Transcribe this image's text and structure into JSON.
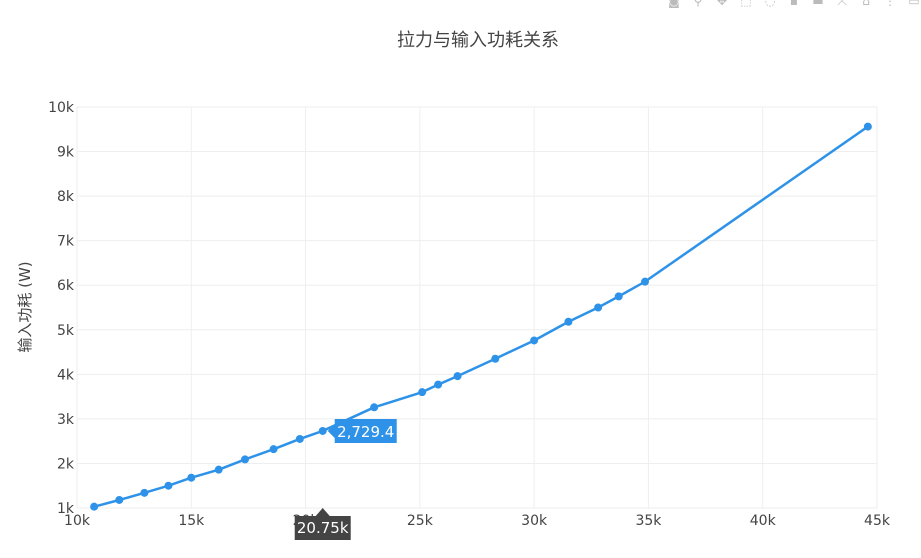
{
  "chart_data": {
    "type": "line",
    "title": "拉力与输入功耗关系",
    "xlabel": "",
    "ylabel": "输入功耗 (W)",
    "xlim": [
      10000,
      45000
    ],
    "ylim": [
      1000,
      10000
    ],
    "x_ticks": [
      "10k",
      "15k",
      "20k",
      "25k",
      "30k",
      "35k",
      "40k",
      "45k"
    ],
    "y_ticks": [
      "1k",
      "2k",
      "3k",
      "4k",
      "5k",
      "6k",
      "7k",
      "8k",
      "9k",
      "10k"
    ],
    "grid": true,
    "color": "#2e93e8",
    "series": [
      {
        "x": [
          10750,
          11850,
          12950,
          14000,
          15000,
          16200,
          17350,
          18600,
          19750,
          20750,
          23000,
          25100,
          25800,
          26650,
          28300,
          30000,
          31500,
          32800,
          33700,
          34850,
          44600
        ],
        "y": [
          1030,
          1180,
          1340,
          1500,
          1680,
          1860,
          2090,
          2320,
          2550,
          2729.4,
          3260,
          3600,
          3770,
          3960,
          4350,
          4760,
          5180,
          5500,
          5750,
          6080,
          9560
        ]
      }
    ],
    "hover": {
      "x_label": "20.75k",
      "y_label": "2,729.4",
      "x": 20750,
      "y": 2729.4
    }
  },
  "modebar_icons": [
    "camera-icon",
    "zoom-icon",
    "pan-icon",
    "box-select-icon",
    "lasso-icon",
    "zoom-in-icon",
    "zoom-out-icon",
    "autoscale-icon",
    "reset-axes-icon",
    "spike-lines-icon",
    "compare-hover-icon"
  ]
}
